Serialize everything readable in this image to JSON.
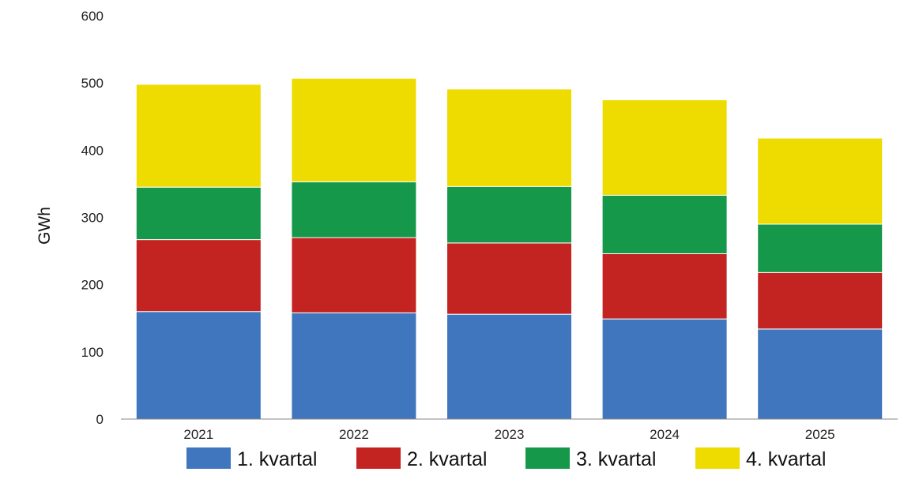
{
  "chart_data": {
    "type": "bar",
    "stacked": true,
    "title": "",
    "xlabel": "",
    "ylabel": "GWh",
    "ylim": [
      0,
      600
    ],
    "yticks": [
      "0",
      "100",
      "200",
      "300",
      "400",
      "500",
      "600"
    ],
    "grid": false,
    "legend": "bottom",
    "categories": [
      "2021",
      "2022",
      "2023",
      "2024",
      "2025"
    ],
    "series": [
      {
        "name": "1. kvartal",
        "color": "#3f76bd",
        "values": [
          160,
          158,
          156,
          149,
          134
        ]
      },
      {
        "name": "2. kvartal",
        "color": "#c32421",
        "values": [
          107,
          112,
          106,
          97,
          84
        ]
      },
      {
        "name": "3. kvartal",
        "color": "#16984b",
        "values": [
          78,
          83,
          84,
          87,
          72
        ]
      },
      {
        "name": "4. kvartal",
        "color": "#eedb00",
        "values": [
          153,
          154,
          145,
          142,
          128
        ]
      }
    ]
  }
}
